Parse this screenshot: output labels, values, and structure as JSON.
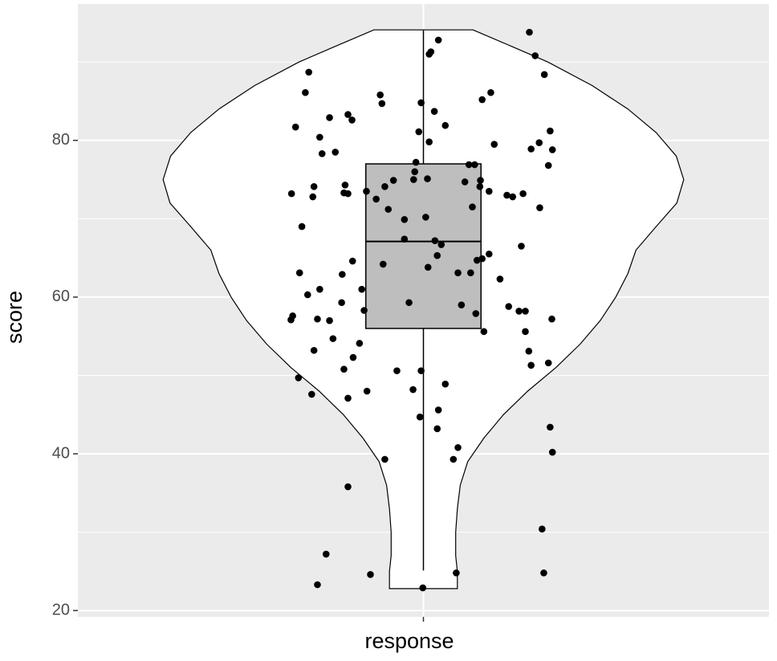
{
  "chart_data": {
    "type": "violin",
    "x_label": "response",
    "y_label": "score",
    "xlim": [
      0.4,
      1.6
    ],
    "xticks": [
      1
    ],
    "ylim": [
      19.2,
      97.4
    ],
    "yticks": [
      20,
      40,
      60,
      80
    ],
    "minor_yticks": [
      30,
      50,
      70,
      90
    ],
    "grid": true,
    "violin": {
      "color": "#ffffff",
      "y": [
        94.1,
        92,
        90,
        87,
        84,
        81,
        78,
        75,
        72,
        69,
        66,
        63,
        60,
        57,
        54,
        51,
        48,
        45,
        42,
        39,
        36,
        33,
        30,
        27,
        25,
        22.8
      ],
      "width": [
        0.086,
        0.153,
        0.216,
        0.293,
        0.355,
        0.404,
        0.439,
        0.452,
        0.44,
        0.404,
        0.369,
        0.355,
        0.334,
        0.307,
        0.272,
        0.23,
        0.181,
        0.139,
        0.105,
        0.077,
        0.064,
        0.059,
        0.056,
        0.056,
        0.059,
        0.059
      ]
    },
    "box": {
      "color": "#bebebe",
      "whisker_low": 25.1,
      "q1": 56,
      "median": 67.1,
      "q3": 77,
      "whisker_high": 94.1,
      "width": 0.2
    },
    "points": {
      "color": "#000000",
      "x": [
        1.184,
        1.026,
        1.013,
        1.01,
        1.194,
        0.801,
        1.21,
        0.795,
        0.925,
        1.117,
        0.928,
        1.102,
        0.996,
        1.019,
        0.869,
        0.837,
        0.876,
        1.038,
        0.778,
        0.992,
        1.22,
        0.82,
        1.01,
        1.123,
        1.201,
        1.187,
        1.224,
        0.847,
        0.824,
        0.987,
        1.079,
        1.089,
        1.217,
        0.985,
        0.983,
        1.007,
        0.948,
        1.072,
        1.099,
        0.864,
        0.933,
        0.81,
        1.098,
        0.901,
        0.862,
        0.869,
        1.114,
        0.771,
        0.808,
        1.145,
        1.155,
        1.173,
        0.918,
        0.939,
        1.085,
        1.202,
        0.967,
        1.004,
        0.789,
        0.967,
        1.02,
        1.031,
        1.17,
        1.024,
        1.114,
        1.102,
        1.093,
        0.877,
        0.93,
        1.008,
        0.785,
        1.06,
        1.082,
        0.859,
        1.133,
        0.82,
        0.893,
        0.799,
        0.858,
        0.975,
        1.066,
        1.148,
        0.897,
        1.166,
        1.177,
        1.091,
        0.773,
        0.77,
        0.816,
        0.837,
        1.223,
        1.105,
        1.177,
        0.843,
        0.889,
        0.81,
        1.183,
        0.878,
        1.217,
        1.187,
        0.862,
        0.954,
        0.996,
        0.783,
        1.038,
        0.902,
        0.982,
        0.806,
        0.869,
        1.026,
        0.994,
        1.024,
        1.22,
        1.06,
        1.224,
        0.933,
        1.052,
        0.869,
        1.206,
        0.831,
        1.057,
        0.908,
        1.209,
        0.816,
        0.999
      ],
      "y": [
        93.8,
        92.8,
        91.3,
        91.0,
        90.8,
        88.7,
        88.4,
        86.1,
        85.8,
        86.1,
        84.7,
        85.2,
        84.8,
        83.7,
        83.3,
        82.9,
        82.6,
        81.9,
        81.7,
        81.1,
        81.2,
        80.4,
        79.8,
        79.5,
        79.7,
        78.9,
        78.8,
        78.5,
        78.3,
        77.2,
        76.9,
        76.9,
        76.8,
        76.0,
        75.0,
        75.1,
        74.9,
        74.7,
        74.9,
        74.3,
        74.1,
        74.1,
        74.1,
        73.5,
        73.3,
        73.2,
        73.5,
        73.2,
        72.8,
        73.0,
        72.8,
        73.2,
        72.5,
        71.2,
        71.5,
        71.4,
        69.9,
        70.2,
        69.0,
        67.4,
        67.2,
        66.7,
        66.5,
        65.3,
        65.5,
        64.9,
        64.7,
        64.6,
        64.2,
        63.8,
        63.1,
        63.1,
        63.1,
        62.9,
        62.3,
        61.0,
        61.0,
        60.3,
        59.3,
        59.3,
        59.0,
        58.8,
        58.3,
        58.2,
        58.2,
        57.9,
        57.6,
        57.1,
        57.2,
        57.0,
        57.2,
        55.6,
        55.6,
        54.7,
        54.1,
        53.2,
        53.1,
        52.3,
        51.6,
        51.3,
        50.8,
        50.6,
        50.6,
        49.7,
        48.9,
        48.0,
        48.2,
        47.6,
        47.1,
        45.6,
        44.7,
        43.2,
        43.4,
        40.8,
        40.2,
        39.3,
        39.3,
        35.8,
        30.4,
        27.2,
        24.8,
        24.6,
        24.8,
        23.3,
        22.9
      ]
    }
  }
}
